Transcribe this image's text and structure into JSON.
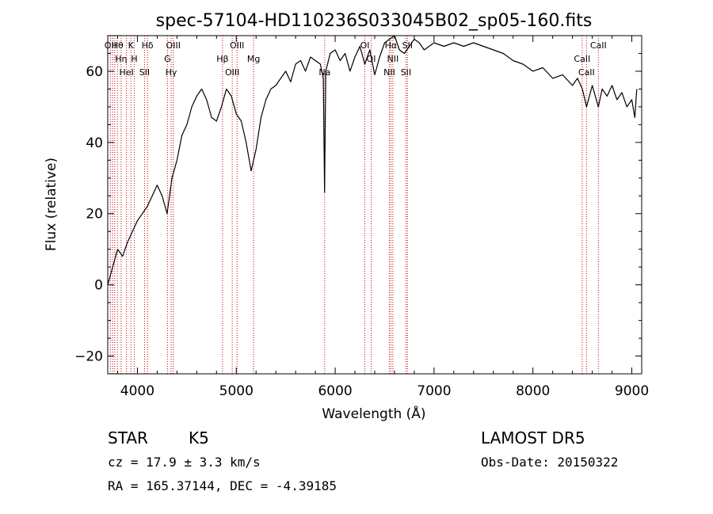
{
  "chart_data": {
    "type": "line",
    "title": "spec-57104-HD110236S033045B02_sp05-160.fits",
    "xlabel": "Wavelength (Å)",
    "ylabel": "Flux (relative)",
    "xlim": [
      3700,
      9100
    ],
    "ylim": [
      -25,
      70
    ],
    "x_ticks": [
      4000,
      5000,
      6000,
      7000,
      8000,
      9000
    ],
    "y_ticks": [
      -20,
      0,
      20,
      40,
      60
    ],
    "grid": false,
    "line_color": "#000000",
    "marker_color": "#cc0000",
    "series": [
      {
        "x": [
          3700,
          3750,
          3800,
          3850,
          3900,
          3950,
          4000,
          4050,
          4100,
          4150,
          4200,
          4250,
          4300,
          4350,
          4400,
          4450,
          4500,
          4550,
          4600,
          4650,
          4700,
          4750,
          4800,
          4850,
          4900,
          4950,
          5000,
          5050,
          5100,
          5150,
          5200,
          5250,
          5300,
          5350,
          5400,
          5450,
          5500,
          5550,
          5600,
          5650,
          5700,
          5750,
          5800,
          5850,
          5880,
          5893,
          5905,
          5950,
          6000,
          6050,
          6100,
          6150,
          6200,
          6250,
          6300,
          6350,
          6400,
          6450,
          6500,
          6550,
          6600,
          6650,
          6700,
          6750,
          6800,
          6850,
          6900,
          6950,
          7000,
          7100,
          7200,
          7300,
          7400,
          7500,
          7600,
          7700,
          7800,
          7900,
          8000,
          8100,
          8200,
          8300,
          8400,
          8450,
          8500,
          8542,
          8600,
          8662,
          8700,
          8750,
          8800,
          8850,
          8900,
          8950,
          9000,
          9030,
          9050
        ],
        "y": [
          0,
          5,
          10,
          8,
          12,
          15,
          18,
          20,
          22,
          25,
          28,
          25,
          20,
          30,
          35,
          42,
          45,
          50,
          53,
          55,
          52,
          47,
          46,
          50,
          55,
          53,
          48,
          46,
          40,
          32,
          38,
          47,
          52,
          55,
          56,
          58,
          60,
          57,
          62,
          63,
          60,
          64,
          63,
          62,
          58,
          26,
          60,
          65,
          66,
          63,
          65,
          60,
          64,
          67,
          62,
          66,
          59,
          64,
          68,
          69,
          70,
          66,
          65,
          67,
          69,
          68,
          66,
          67,
          68,
          67,
          68,
          67,
          68,
          67,
          66,
          65,
          63,
          62,
          60,
          61,
          58,
          59,
          56,
          58,
          55,
          50,
          56,
          50,
          55,
          53,
          56,
          52,
          54,
          50,
          52,
          47,
          55
        ]
      }
    ],
    "line_markers": [
      {
        "x": 3727,
        "label": "OII"
      },
      {
        "x": 3750,
        "label": ""
      },
      {
        "x": 3771,
        "label": ""
      },
      {
        "x": 3798,
        "label": "Hθ"
      },
      {
        "x": 3835,
        "label": "Hη"
      },
      {
        "x": 3889,
        "label": "HeI"
      },
      {
        "x": 3934,
        "label": "K"
      },
      {
        "x": 3969,
        "label": "H"
      },
      {
        "x": 4072,
        "label": "SII"
      },
      {
        "x": 4102,
        "label": "Hδ"
      },
      {
        "x": 4304,
        "label": "G"
      },
      {
        "x": 4341,
        "label": "Hγ"
      },
      {
        "x": 4363,
        "label": "OIII"
      },
      {
        "x": 4861,
        "label": "Hβ"
      },
      {
        "x": 4959,
        "label": "OIII"
      },
      {
        "x": 5007,
        "label": "OIII"
      },
      {
        "x": 5175,
        "label": "Mg"
      },
      {
        "x": 5894,
        "label": "Na"
      },
      {
        "x": 6300,
        "label": "OI"
      },
      {
        "x": 6364,
        "label": "OI"
      },
      {
        "x": 6548,
        "label": "NII"
      },
      {
        "x": 6563,
        "label": "Hα"
      },
      {
        "x": 6583,
        "label": "NII"
      },
      {
        "x": 6716,
        "label": "SII"
      },
      {
        "x": 6731,
        "label": "SII"
      },
      {
        "x": 8498,
        "label": "CaII"
      },
      {
        "x": 8542,
        "label": "CaII"
      },
      {
        "x": 8662,
        "label": "CaII"
      }
    ]
  },
  "footer": {
    "object_class": "STAR",
    "subclass": "K5",
    "redshift": "cz = 17.9 ± 3.3 km/s",
    "coords": "RA = 165.37144, DEC =  -4.39185",
    "survey": "LAMOST DR5",
    "obs_date": "Obs-Date: 20150322"
  }
}
